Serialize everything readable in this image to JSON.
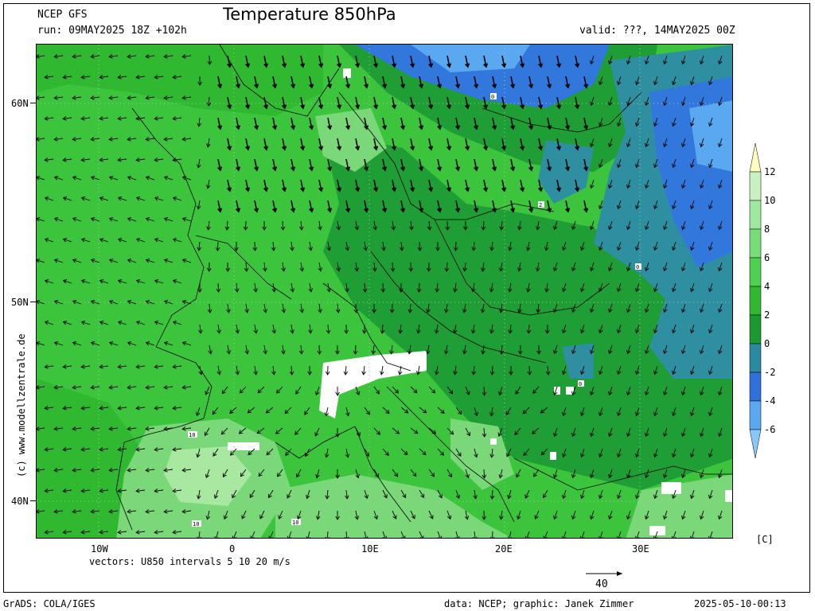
{
  "header": {
    "model": "NCEP GFS",
    "run": "run: 09MAY2025 18Z +102h",
    "title": "Temperature 850hPa",
    "valid": "valid: ???, 14MAY2025 00Z"
  },
  "axes": {
    "lat_labels": [
      "60N",
      "50N",
      "40N"
    ],
    "lon_labels": [
      "10W",
      "0",
      "10E",
      "20E",
      "30E"
    ]
  },
  "legend": {
    "levels": [
      "12",
      "10",
      "8",
      "6",
      "4",
      "2",
      "0",
      "-2",
      "-4",
      "-6"
    ],
    "unit": "[C]",
    "colors": [
      "#ffffc0",
      "#c8f0c0",
      "#a0e8a0",
      "#78dc78",
      "#50d050",
      "#30b830",
      "#1a9a30",
      "#2a8aa0",
      "#3070d8",
      "#5aa8f0",
      "#88c8f8"
    ]
  },
  "vectors_note": "vectors: U850 intervals 5 10 20 m/s",
  "reference_vector": "40",
  "side_credit": "(c) www.modellzentrale.de",
  "footer": {
    "left": "GrADS: COLA/IGES",
    "center": "data: NCEP; graphic: Janek Zimmer",
    "right": "2025-05-10-00:13"
  },
  "contour_labels": [
    "0",
    "2",
    "0",
    "0",
    "10",
    "10",
    "10"
  ],
  "map_colors": {
    "base": "#3cc43c",
    "warm": "#7ad878",
    "warmer": "#a8e8a0",
    "dark": "#1e9e34",
    "teal": "#2e8fa0",
    "blue": "#3278dc",
    "lightblue": "#5aa8f0",
    "white": "#ffffff"
  }
}
